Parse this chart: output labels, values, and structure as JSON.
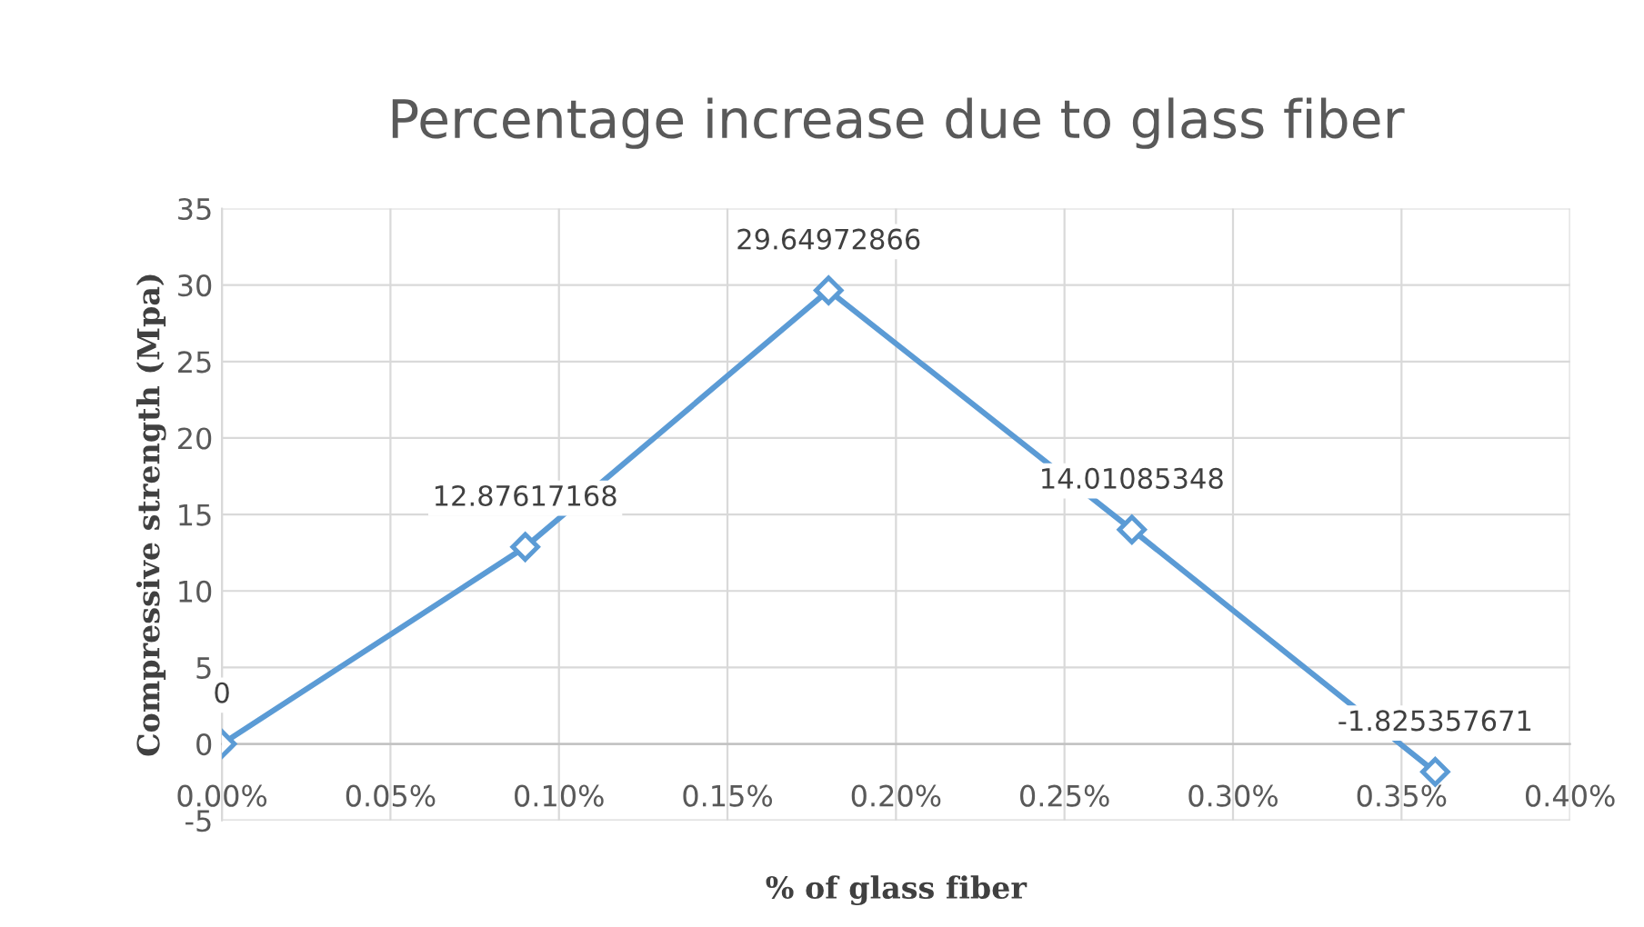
{
  "chart_data": {
    "type": "line",
    "title": "Percentage increase due to glass fiber",
    "xlabel": "% of glass fiber",
    "ylabel": "Compressive strength (Mpa)",
    "x": [
      0,
      0.09,
      0.18,
      0.27,
      0.36
    ],
    "series": [
      {
        "color": "#5b9bd5",
        "values": [
          0,
          12.87617168,
          29.64972866,
          14.01085348,
          -1.825357671
        ]
      }
    ],
    "xlim": [
      0,
      0.4
    ],
    "xticks": [
      {
        "value": 0,
        "label": "0.00%"
      },
      {
        "value": 0.05,
        "label": "0.05%"
      },
      {
        "value": 0.1,
        "label": "0.10%"
      },
      {
        "value": 0.15,
        "label": "0.15%"
      },
      {
        "value": 0.2,
        "label": "0.20%"
      },
      {
        "value": 0.25,
        "label": "0.25%"
      },
      {
        "value": 0.3,
        "label": "0.30%"
      },
      {
        "value": 0.35,
        "label": "0.35%"
      },
      {
        "value": 0.4,
        "label": "0.40%"
      }
    ],
    "ylim": [
      -5,
      35
    ],
    "yticks": [
      -5,
      0,
      5,
      10,
      15,
      20,
      25,
      30,
      35
    ],
    "grid": true,
    "marker": "diamond",
    "line_style": "solid",
    "data_labels": true
  }
}
